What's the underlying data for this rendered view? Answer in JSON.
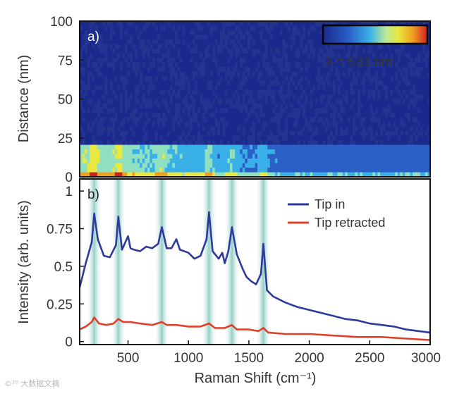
{
  "chart_data": [
    {
      "type": "heatmap",
      "panel_label": "a)",
      "ylabel": "Distance (nm)",
      "ylim": [
        0,
        100
      ],
      "yticks": [
        "0",
        "25",
        "50",
        "75",
        "100"
      ],
      "xlim": [
        100,
        3000
      ],
      "colorbar_label": "λ = 633 nm",
      "colormap": [
        "#1a2a8c",
        "#2a60c8",
        "#3ab0e8",
        "#8ee0c0",
        "#e8e840",
        "#f0a020",
        "#d02020"
      ],
      "bands": [
        {
          "distance_range": [
            0,
            3
          ],
          "intensity": "high (yellow/red at peaks)"
        },
        {
          "distance_range": [
            3,
            20
          ],
          "intensity": "medium (cyan/yellow)"
        },
        {
          "distance_range": [
            20,
            100
          ],
          "intensity": "low (dark blue)"
        }
      ]
    },
    {
      "type": "line",
      "panel_label": "b)",
      "xlabel": "Raman Shift (cm⁻¹)",
      "ylabel": "Intensity (arb. units)",
      "xlim": [
        100,
        3000
      ],
      "ylim": [
        -0.02,
        1.08
      ],
      "xticks": [
        "500",
        "1000",
        "1500",
        "2000",
        "2500",
        "3000"
      ],
      "yticks": [
        "0",
        "0.25",
        "0.5",
        "0.75",
        "1"
      ],
      "highlight_bands": [
        220,
        420,
        780,
        1170,
        1360,
        1620
      ],
      "legend": {
        "position": "top-right"
      },
      "series": [
        {
          "name": "Tip in",
          "color": "#2e3a9c",
          "x": [
            100,
            150,
            200,
            220,
            250,
            300,
            350,
            400,
            420,
            450,
            500,
            520,
            550,
            600,
            650,
            700,
            750,
            780,
            820,
            860,
            900,
            930,
            1000,
            1050,
            1100,
            1150,
            1170,
            1200,
            1250,
            1280,
            1300,
            1330,
            1360,
            1400,
            1450,
            1480,
            1520,
            1560,
            1600,
            1620,
            1650,
            1700,
            1800,
            1900,
            2000,
            2100,
            2200,
            2300,
            2400,
            2500,
            2600,
            2700,
            2800,
            2900,
            3000
          ],
          "y": [
            0.36,
            0.52,
            0.66,
            0.85,
            0.68,
            0.57,
            0.56,
            0.64,
            0.83,
            0.61,
            0.7,
            0.62,
            0.61,
            0.6,
            0.63,
            0.62,
            0.65,
            0.76,
            0.62,
            0.62,
            0.68,
            0.61,
            0.59,
            0.55,
            0.57,
            0.68,
            0.86,
            0.6,
            0.55,
            0.59,
            0.52,
            0.6,
            0.76,
            0.58,
            0.48,
            0.43,
            0.4,
            0.38,
            0.45,
            0.65,
            0.34,
            0.3,
            0.26,
            0.23,
            0.21,
            0.19,
            0.17,
            0.15,
            0.14,
            0.12,
            0.11,
            0.1,
            0.08,
            0.07,
            0.06
          ]
        },
        {
          "name": "Tip retracted",
          "color": "#e0402a",
          "x": [
            100,
            150,
            200,
            220,
            260,
            320,
            380,
            420,
            460,
            520,
            600,
            700,
            780,
            820,
            900,
            1000,
            1100,
            1170,
            1220,
            1300,
            1360,
            1400,
            1500,
            1580,
            1620,
            1660,
            1800,
            2000,
            2200,
            2400,
            2600,
            2800,
            3000
          ],
          "y": [
            0.08,
            0.1,
            0.13,
            0.16,
            0.12,
            0.11,
            0.12,
            0.15,
            0.13,
            0.13,
            0.12,
            0.11,
            0.13,
            0.11,
            0.11,
            0.1,
            0.1,
            0.12,
            0.09,
            0.09,
            0.11,
            0.08,
            0.08,
            0.07,
            0.09,
            0.06,
            0.05,
            0.05,
            0.04,
            0.03,
            0.03,
            0.02,
            0.01
          ]
        }
      ]
    }
  ],
  "watermark": "©²⁰ 大数据文摘"
}
